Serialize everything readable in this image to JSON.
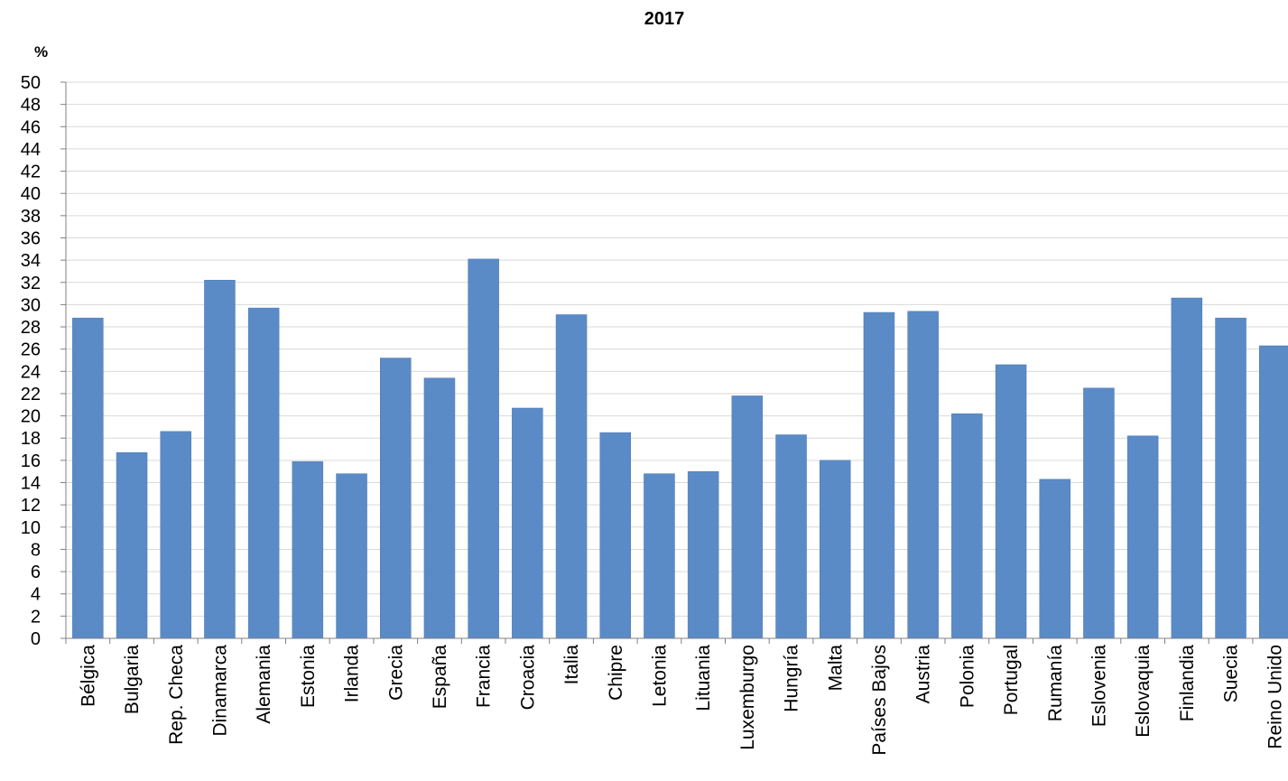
{
  "chart_data": {
    "type": "bar",
    "title": "2017",
    "ylabel": "%",
    "xlabel": "",
    "ylim": [
      0,
      50
    ],
    "ytick_step": 2,
    "grid": true,
    "bar_color": "#5b8bc7",
    "grid_color": "#d9d9d9",
    "categories": [
      "Bélgica",
      "Bulgaria",
      "Rep. Checa",
      "Dinamarca",
      "Alemania",
      "Estonia",
      "Irlanda",
      "Grecia",
      "España",
      "Francia",
      "Croacia",
      "Italia",
      "Chipre",
      "Letonia",
      "Lituania",
      "Luxemburgo",
      "Hungría",
      "Malta",
      "Países Bajos",
      "Austria",
      "Polonia",
      "Portugal",
      "Rumanía",
      "Eslovenia",
      "Eslovaquia",
      "Finlandia",
      "Suecia",
      "Reino Unido"
    ],
    "values": [
      28.8,
      16.7,
      18.6,
      32.2,
      29.7,
      15.9,
      14.8,
      25.2,
      23.4,
      34.1,
      20.7,
      29.1,
      18.5,
      14.8,
      15.0,
      21.8,
      18.3,
      16.0,
      29.3,
      29.4,
      20.2,
      24.6,
      14.3,
      22.5,
      18.2,
      30.6,
      28.8,
      26.3
    ]
  }
}
